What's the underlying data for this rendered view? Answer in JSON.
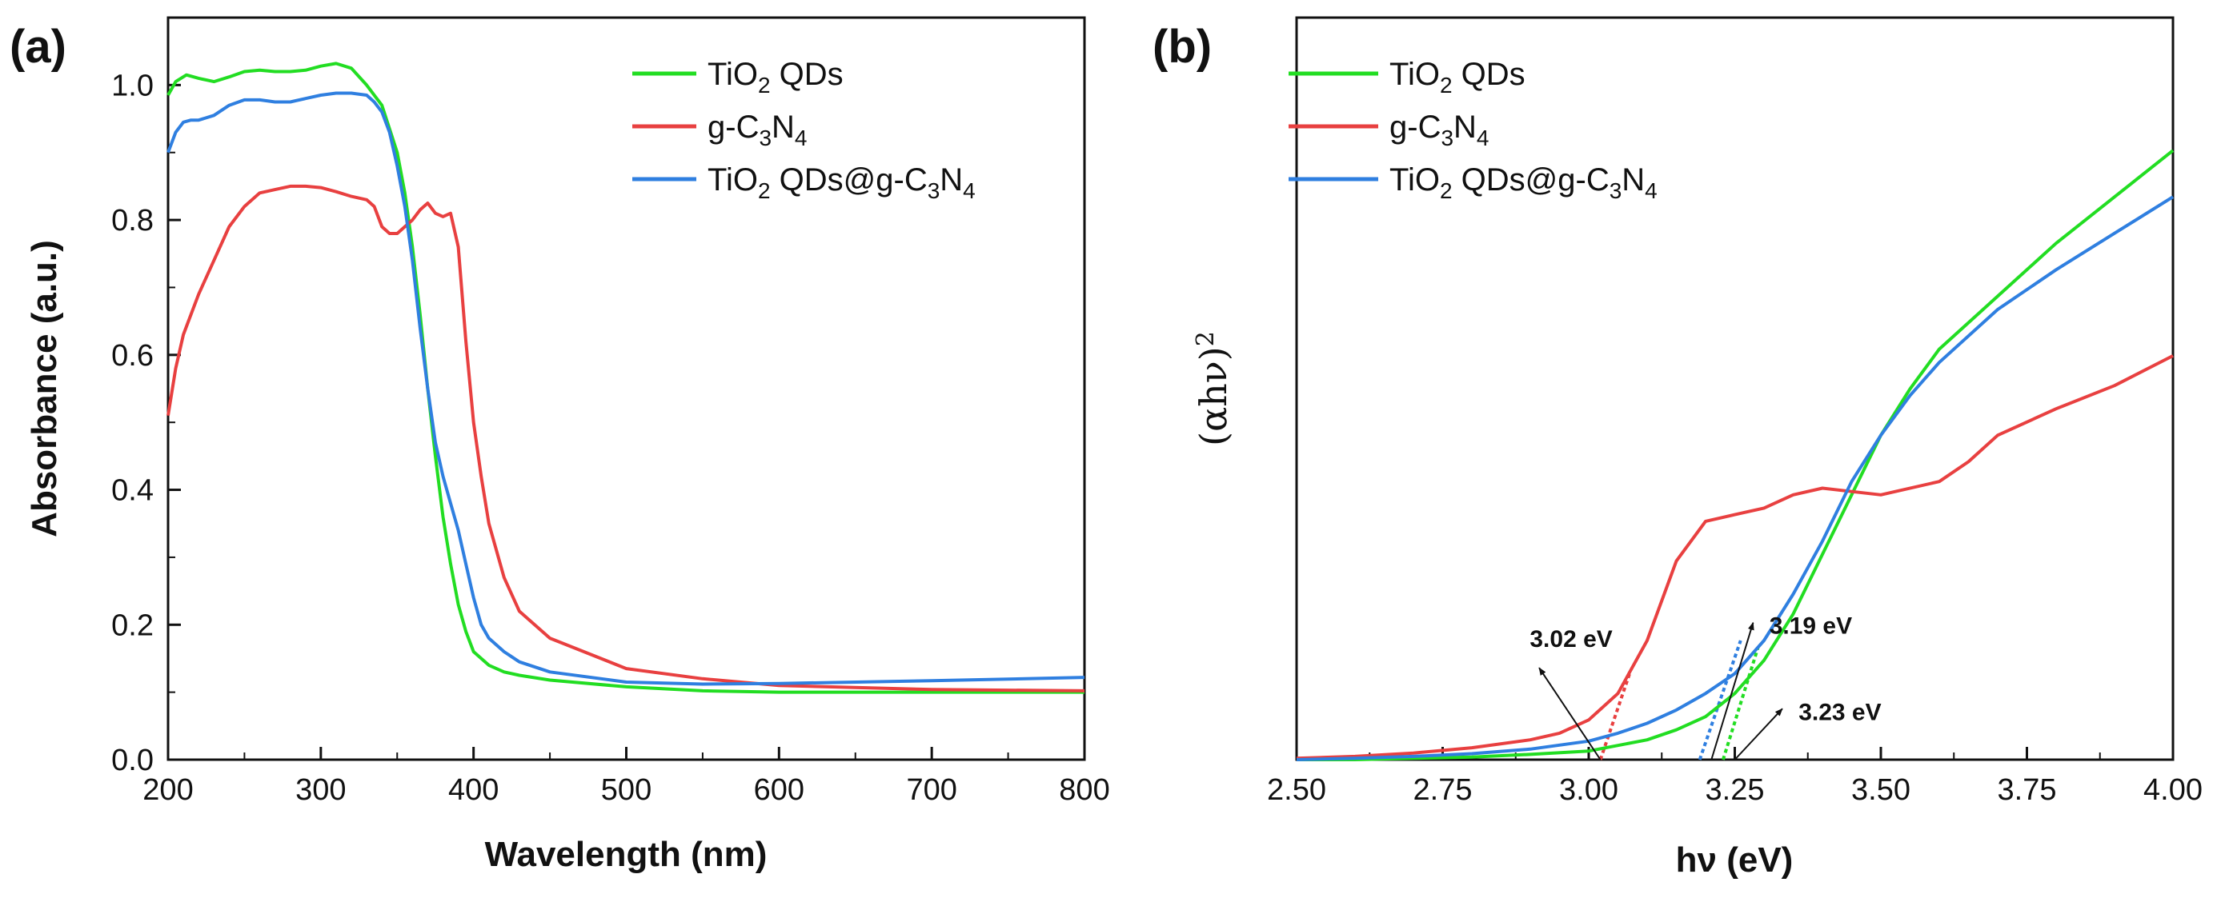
{
  "chart_data": [
    {
      "type": "line",
      "panel_label": "(a)",
      "xlabel": "Wavelength (nm)",
      "ylabel": "Absorbance (a.u.)",
      "xlim": [
        200,
        800
      ],
      "ylim": [
        0.0,
        1.1
      ],
      "xticks": [
        200,
        300,
        400,
        500,
        600,
        700,
        800
      ],
      "xtick_labels": [
        "200",
        "300",
        "400",
        "500",
        "600",
        "700",
        "800"
      ],
      "yticks": [
        0.0,
        0.2,
        0.4,
        0.6,
        0.8,
        1.0
      ],
      "ytick_labels": [
        "0.0",
        "0.2",
        "0.4",
        "0.6",
        "0.8",
        "1.0"
      ],
      "legend_position": "top-right",
      "series": [
        {
          "name": "TiO2 QDs",
          "legend_parts": [
            [
              "TiO",
              "n"
            ],
            [
              "2",
              "sub"
            ],
            [
              " QDs",
              "n"
            ]
          ],
          "color": "#22dd22",
          "x": [
            200,
            205,
            212,
            220,
            230,
            240,
            250,
            260,
            270,
            280,
            290,
            300,
            310,
            320,
            330,
            340,
            350,
            355,
            360,
            365,
            370,
            375,
            380,
            385,
            390,
            395,
            400,
            410,
            420,
            430,
            450,
            500,
            550,
            600,
            700,
            800
          ],
          "y": [
            0.985,
            1.005,
            1.015,
            1.01,
            1.005,
            1.012,
            1.02,
            1.022,
            1.02,
            1.02,
            1.022,
            1.028,
            1.032,
            1.025,
            1.0,
            0.97,
            0.9,
            0.84,
            0.76,
            0.66,
            0.55,
            0.45,
            0.36,
            0.29,
            0.23,
            0.19,
            0.16,
            0.14,
            0.13,
            0.125,
            0.118,
            0.108,
            0.102,
            0.1,
            0.1,
            0.1
          ]
        },
        {
          "name": "g-C3N4",
          "legend_parts": [
            [
              "g-C",
              "n"
            ],
            [
              "3",
              "sub"
            ],
            [
              "N",
              "n"
            ],
            [
              "4",
              "sub"
            ]
          ],
          "color": "#e84040",
          "x": [
            200,
            205,
            210,
            220,
            230,
            240,
            250,
            260,
            270,
            280,
            290,
            300,
            310,
            320,
            330,
            335,
            340,
            345,
            350,
            355,
            360,
            365,
            370,
            375,
            380,
            385,
            390,
            395,
            400,
            405,
            410,
            420,
            430,
            450,
            500,
            550,
            600,
            700,
            800
          ],
          "y": [
            0.51,
            0.58,
            0.63,
            0.69,
            0.74,
            0.79,
            0.82,
            0.84,
            0.845,
            0.85,
            0.85,
            0.848,
            0.842,
            0.835,
            0.83,
            0.82,
            0.79,
            0.78,
            0.78,
            0.79,
            0.8,
            0.815,
            0.825,
            0.81,
            0.805,
            0.81,
            0.76,
            0.62,
            0.5,
            0.42,
            0.35,
            0.27,
            0.22,
            0.18,
            0.135,
            0.12,
            0.11,
            0.104,
            0.102
          ]
        },
        {
          "name": "TiO2 QDs@g-C3N4",
          "legend_parts": [
            [
              "TiO",
              "n"
            ],
            [
              "2",
              "sub"
            ],
            [
              " QDs@g-C",
              "n"
            ],
            [
              "3",
              "sub"
            ],
            [
              "N",
              "n"
            ],
            [
              "4",
              "sub"
            ]
          ],
          "color": "#2f7fe0",
          "x": [
            200,
            205,
            210,
            215,
            220,
            230,
            240,
            250,
            260,
            270,
            280,
            290,
            300,
            310,
            320,
            330,
            335,
            340,
            345,
            350,
            355,
            360,
            365,
            370,
            375,
            380,
            385,
            390,
            395,
            400,
            405,
            410,
            420,
            430,
            450,
            500,
            550,
            600,
            700,
            800
          ],
          "y": [
            0.9,
            0.93,
            0.945,
            0.948,
            0.948,
            0.955,
            0.97,
            0.978,
            0.978,
            0.975,
            0.975,
            0.98,
            0.985,
            0.988,
            0.988,
            0.985,
            0.975,
            0.96,
            0.93,
            0.88,
            0.82,
            0.74,
            0.64,
            0.55,
            0.47,
            0.42,
            0.38,
            0.34,
            0.29,
            0.24,
            0.2,
            0.18,
            0.16,
            0.145,
            0.13,
            0.115,
            0.112,
            0.113,
            0.117,
            0.122
          ]
        }
      ]
    },
    {
      "type": "line",
      "panel_label": "(b)",
      "xlabel": "hν (eV)",
      "ylabel_parts": [
        [
          "(αhν)",
          "n"
        ],
        [
          "2",
          "sup"
        ]
      ],
      "xlim": [
        2.5,
        4.0
      ],
      "ylim": [
        0,
        1.0
      ],
      "yticks_shown": false,
      "xticks": [
        2.5,
        2.75,
        3.0,
        3.25,
        3.5,
        3.75,
        4.0
      ],
      "xtick_labels": [
        "2.50",
        "2.75",
        "3.00",
        "3.25",
        "3.50",
        "3.75",
        "4.00"
      ],
      "legend_position": "top-left",
      "series": [
        {
          "name": "TiO2 QDs",
          "legend_parts": [
            [
              "TiO",
              "n"
            ],
            [
              "2",
              "sub"
            ],
            [
              " QDs",
              "n"
            ]
          ],
          "color": "#22dd22",
          "x": [
            2.5,
            2.6,
            2.7,
            2.8,
            2.9,
            3.0,
            3.1,
            3.15,
            3.2,
            3.25,
            3.3,
            3.35,
            3.4,
            3.45,
            3.5,
            3.55,
            3.6,
            3.7,
            3.8,
            3.9,
            4.0
          ],
          "y": [
            0.0,
            0.0,
            0.002,
            0.004,
            0.008,
            0.013,
            0.03,
            0.045,
            0.065,
            0.1,
            0.15,
            0.22,
            0.31,
            0.4,
            0.49,
            0.56,
            0.62,
            0.7,
            0.78,
            0.85,
            0.92
          ]
        },
        {
          "name": "g-C3N4",
          "legend_parts": [
            [
              "g-C",
              "n"
            ],
            [
              "3",
              "sub"
            ],
            [
              "N",
              "n"
            ],
            [
              "4",
              "sub"
            ]
          ],
          "color": "#e84040",
          "x": [
            2.5,
            2.6,
            2.7,
            2.8,
            2.9,
            2.95,
            3.0,
            3.05,
            3.1,
            3.15,
            3.2,
            3.25,
            3.3,
            3.35,
            3.4,
            3.45,
            3.5,
            3.6,
            3.65,
            3.7,
            3.8,
            3.9,
            4.0
          ],
          "y": [
            0.002,
            0.005,
            0.01,
            0.018,
            0.03,
            0.04,
            0.06,
            0.1,
            0.18,
            0.3,
            0.36,
            0.37,
            0.38,
            0.4,
            0.41,
            0.405,
            0.4,
            0.42,
            0.45,
            0.49,
            0.53,
            0.565,
            0.61
          ]
        },
        {
          "name": "TiO2 QDs@g-C3N4",
          "legend_parts": [
            [
              "TiO",
              "n"
            ],
            [
              "2",
              "sub"
            ],
            [
              " QDs@g-C",
              "n"
            ],
            [
              "3",
              "sub"
            ],
            [
              "N",
              "n"
            ],
            [
              "4",
              "sub"
            ]
          ],
          "color": "#2f7fe0",
          "x": [
            2.5,
            2.6,
            2.7,
            2.8,
            2.9,
            3.0,
            3.05,
            3.1,
            3.15,
            3.2,
            3.25,
            3.3,
            3.35,
            3.4,
            3.45,
            3.5,
            3.55,
            3.6,
            3.7,
            3.8,
            3.9,
            4.0
          ],
          "y": [
            0.0,
            0.002,
            0.005,
            0.009,
            0.016,
            0.028,
            0.04,
            0.055,
            0.075,
            0.1,
            0.13,
            0.18,
            0.25,
            0.33,
            0.42,
            0.49,
            0.55,
            0.6,
            0.68,
            0.74,
            0.795,
            0.85
          ]
        }
      ],
      "tangent_lines": [
        {
          "series": "g-C3N4",
          "color": "#e84040",
          "x": [
            3.02,
            3.07
          ],
          "y": [
            0.0,
            0.13
          ]
        },
        {
          "series": "TiO2 QDs@g-C3N4",
          "color": "#2f7fe0",
          "x": [
            3.19,
            3.26
          ],
          "y": [
            0.0,
            0.18
          ]
        },
        {
          "series": "TiO2 QDs",
          "color": "#22dd22",
          "x": [
            3.23,
            3.29
          ],
          "y": [
            0.0,
            0.17
          ]
        }
      ],
      "annotations": [
        {
          "text": "3.02 eV",
          "point": [
            3.02,
            0.0
          ],
          "label_at": [
            2.97,
            0.17
          ]
        },
        {
          "text": "3.19 eV",
          "point": [
            3.21,
            0.0
          ],
          "label_at": [
            3.38,
            0.19
          ]
        },
        {
          "text": "3.23 eV",
          "point": [
            3.25,
            0.0
          ],
          "label_at": [
            3.43,
            0.06
          ]
        }
      ]
    }
  ]
}
